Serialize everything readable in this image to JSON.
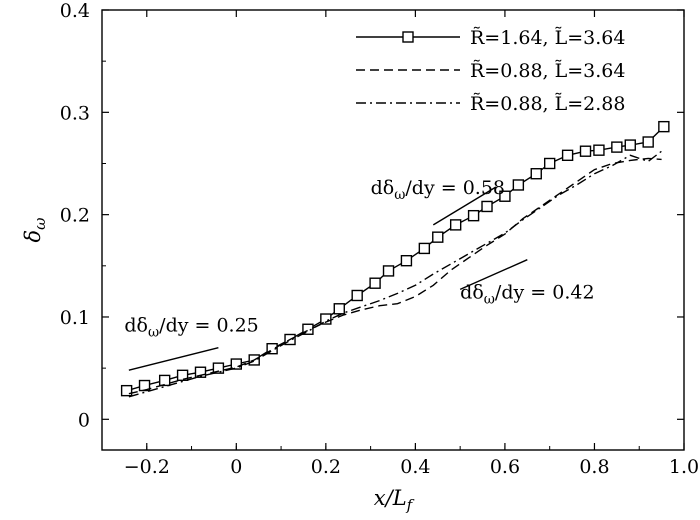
{
  "chart_data": {
    "type": "line",
    "xlabel": "x/L_f",
    "ylabel": "δ_ω",
    "xlim": [
      -0.3,
      1.0
    ],
    "ylim": [
      -0.03,
      0.4
    ],
    "xticks": [
      -0.2,
      0,
      0.2,
      0.4,
      0.6,
      0.8,
      1.0
    ],
    "xtick_labels": [
      "−0.2",
      "0",
      "0.2",
      "0.4",
      "0.6",
      "0.8",
      "1.0"
    ],
    "yticks": [
      0,
      0.1,
      0.2,
      0.3,
      0.4
    ],
    "ytick_labels": [
      "0",
      "0.1",
      "0.2",
      "0.3",
      "0.4"
    ],
    "legend_position": "top-right",
    "series": [
      {
        "name": "R̃=1.64, L̃=3.64",
        "line_style": "solid",
        "marker": "square",
        "x": [
          -0.245,
          -0.205,
          -0.16,
          -0.12,
          -0.08,
          -0.04,
          0.0,
          0.04,
          0.08,
          0.12,
          0.16,
          0.2,
          0.23,
          0.27,
          0.31,
          0.34,
          0.38,
          0.42,
          0.45,
          0.49,
          0.53,
          0.56,
          0.6,
          0.63,
          0.67,
          0.7,
          0.74,
          0.78,
          0.81,
          0.85,
          0.88,
          0.92,
          0.955
        ],
        "y": [
          0.028,
          0.033,
          0.038,
          0.043,
          0.046,
          0.05,
          0.054,
          0.058,
          0.069,
          0.078,
          0.088,
          0.098,
          0.108,
          0.121,
          0.133,
          0.145,
          0.155,
          0.167,
          0.178,
          0.19,
          0.199,
          0.208,
          0.218,
          0.229,
          0.24,
          0.25,
          0.258,
          0.262,
          0.263,
          0.266,
          0.268,
          0.271,
          0.286
        ]
      },
      {
        "name": "R̃=0.88, L̃=3.64",
        "line_style": "dashed",
        "marker": "none",
        "x": [
          -0.24,
          -0.2,
          -0.16,
          -0.12,
          -0.08,
          -0.04,
          0.0,
          0.04,
          0.08,
          0.12,
          0.16,
          0.2,
          0.24,
          0.28,
          0.32,
          0.36,
          0.4,
          0.44,
          0.48,
          0.52,
          0.56,
          0.6,
          0.64,
          0.68,
          0.72,
          0.76,
          0.8,
          0.84,
          0.88,
          0.92,
          0.95
        ],
        "y": [
          0.025,
          0.029,
          0.034,
          0.039,
          0.043,
          0.047,
          0.051,
          0.058,
          0.068,
          0.078,
          0.087,
          0.095,
          0.102,
          0.107,
          0.111,
          0.113,
          0.12,
          0.131,
          0.146,
          0.158,
          0.17,
          0.181,
          0.196,
          0.208,
          0.22,
          0.232,
          0.244,
          0.25,
          0.253,
          0.255,
          0.254
        ]
      },
      {
        "name": "R̃=0.88, L̃=2.88",
        "line_style": "dashdot",
        "marker": "none",
        "x": [
          -0.24,
          -0.2,
          -0.16,
          -0.12,
          -0.08,
          -0.04,
          0.0,
          0.04,
          0.08,
          0.12,
          0.16,
          0.2,
          0.24,
          0.28,
          0.32,
          0.36,
          0.4,
          0.44,
          0.48,
          0.52,
          0.56,
          0.6,
          0.64,
          0.68,
          0.72,
          0.76,
          0.8,
          0.84,
          0.88,
          0.92,
          0.95
        ],
        "y": [
          0.022,
          0.027,
          0.032,
          0.037,
          0.042,
          0.046,
          0.05,
          0.057,
          0.067,
          0.077,
          0.086,
          0.096,
          0.104,
          0.11,
          0.116,
          0.123,
          0.131,
          0.142,
          0.152,
          0.162,
          0.172,
          0.182,
          0.195,
          0.207,
          0.219,
          0.229,
          0.24,
          0.248,
          0.258,
          0.252,
          0.262
        ]
      }
    ],
    "annotations": [
      {
        "text": "dδ_ω/dy = 0.25",
        "slope": 0.25,
        "text_at": [
          -0.25,
          0.086
        ],
        "line": [
          [
            -0.24,
            0.048
          ],
          [
            -0.04,
            0.07
          ]
        ]
      },
      {
        "text": "dδ_ω/dy = 0.58",
        "slope": 0.58,
        "text_at": [
          0.3,
          0.22
        ],
        "line": [
          [
            0.44,
            0.19
          ],
          [
            0.58,
            0.227
          ]
        ]
      },
      {
        "text": "dδ_ω/dy = 0.42",
        "slope": 0.42,
        "text_at": [
          0.5,
          0.118
        ],
        "line": [
          [
            0.5,
            0.127
          ],
          [
            0.65,
            0.156
          ]
        ]
      }
    ]
  }
}
